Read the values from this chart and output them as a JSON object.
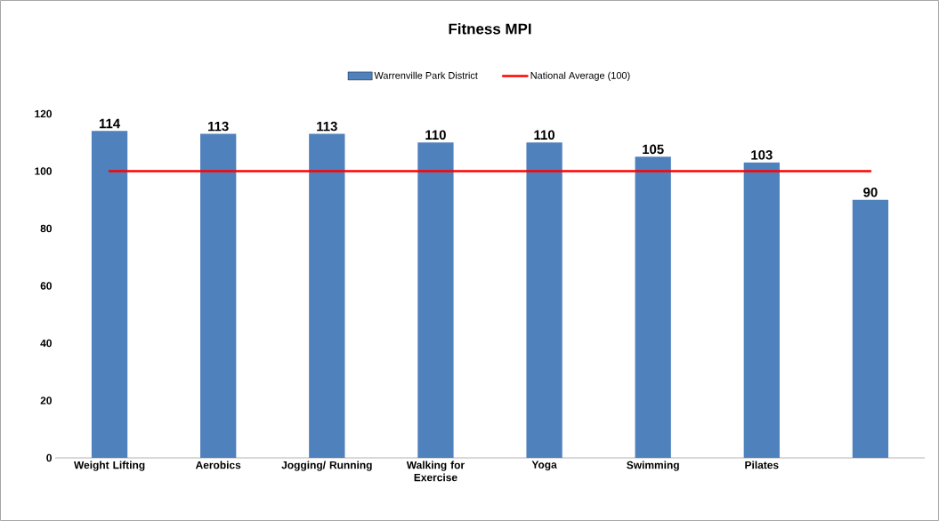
{
  "chart_data": {
    "type": "bar",
    "title": "Fitness MPI",
    "categories": [
      "Weight Lifting",
      "Aerobics",
      "Jogging/ Running",
      "Walking for Exercise",
      "Yoga",
      "Swimming",
      "Pilates",
      null
    ],
    "series": [
      {
        "name": "Warrenville Park District",
        "color": "#4f81bd",
        "values": [
          114,
          113,
          113,
          110,
          110,
          105,
          103,
          90
        ],
        "value_labels": [
          "114",
          "113",
          "113",
          "110",
          "110",
          "105",
          "103",
          "90"
        ]
      },
      {
        "name": "National Average (100)",
        "type": "line",
        "color": "#ff0000",
        "values": [
          100,
          100,
          100,
          100,
          100,
          100,
          100,
          100
        ]
      }
    ],
    "ylim": [
      0,
      120
    ],
    "yticks": [
      0,
      20,
      40,
      60,
      80,
      100,
      120
    ],
    "legend": "top"
  }
}
